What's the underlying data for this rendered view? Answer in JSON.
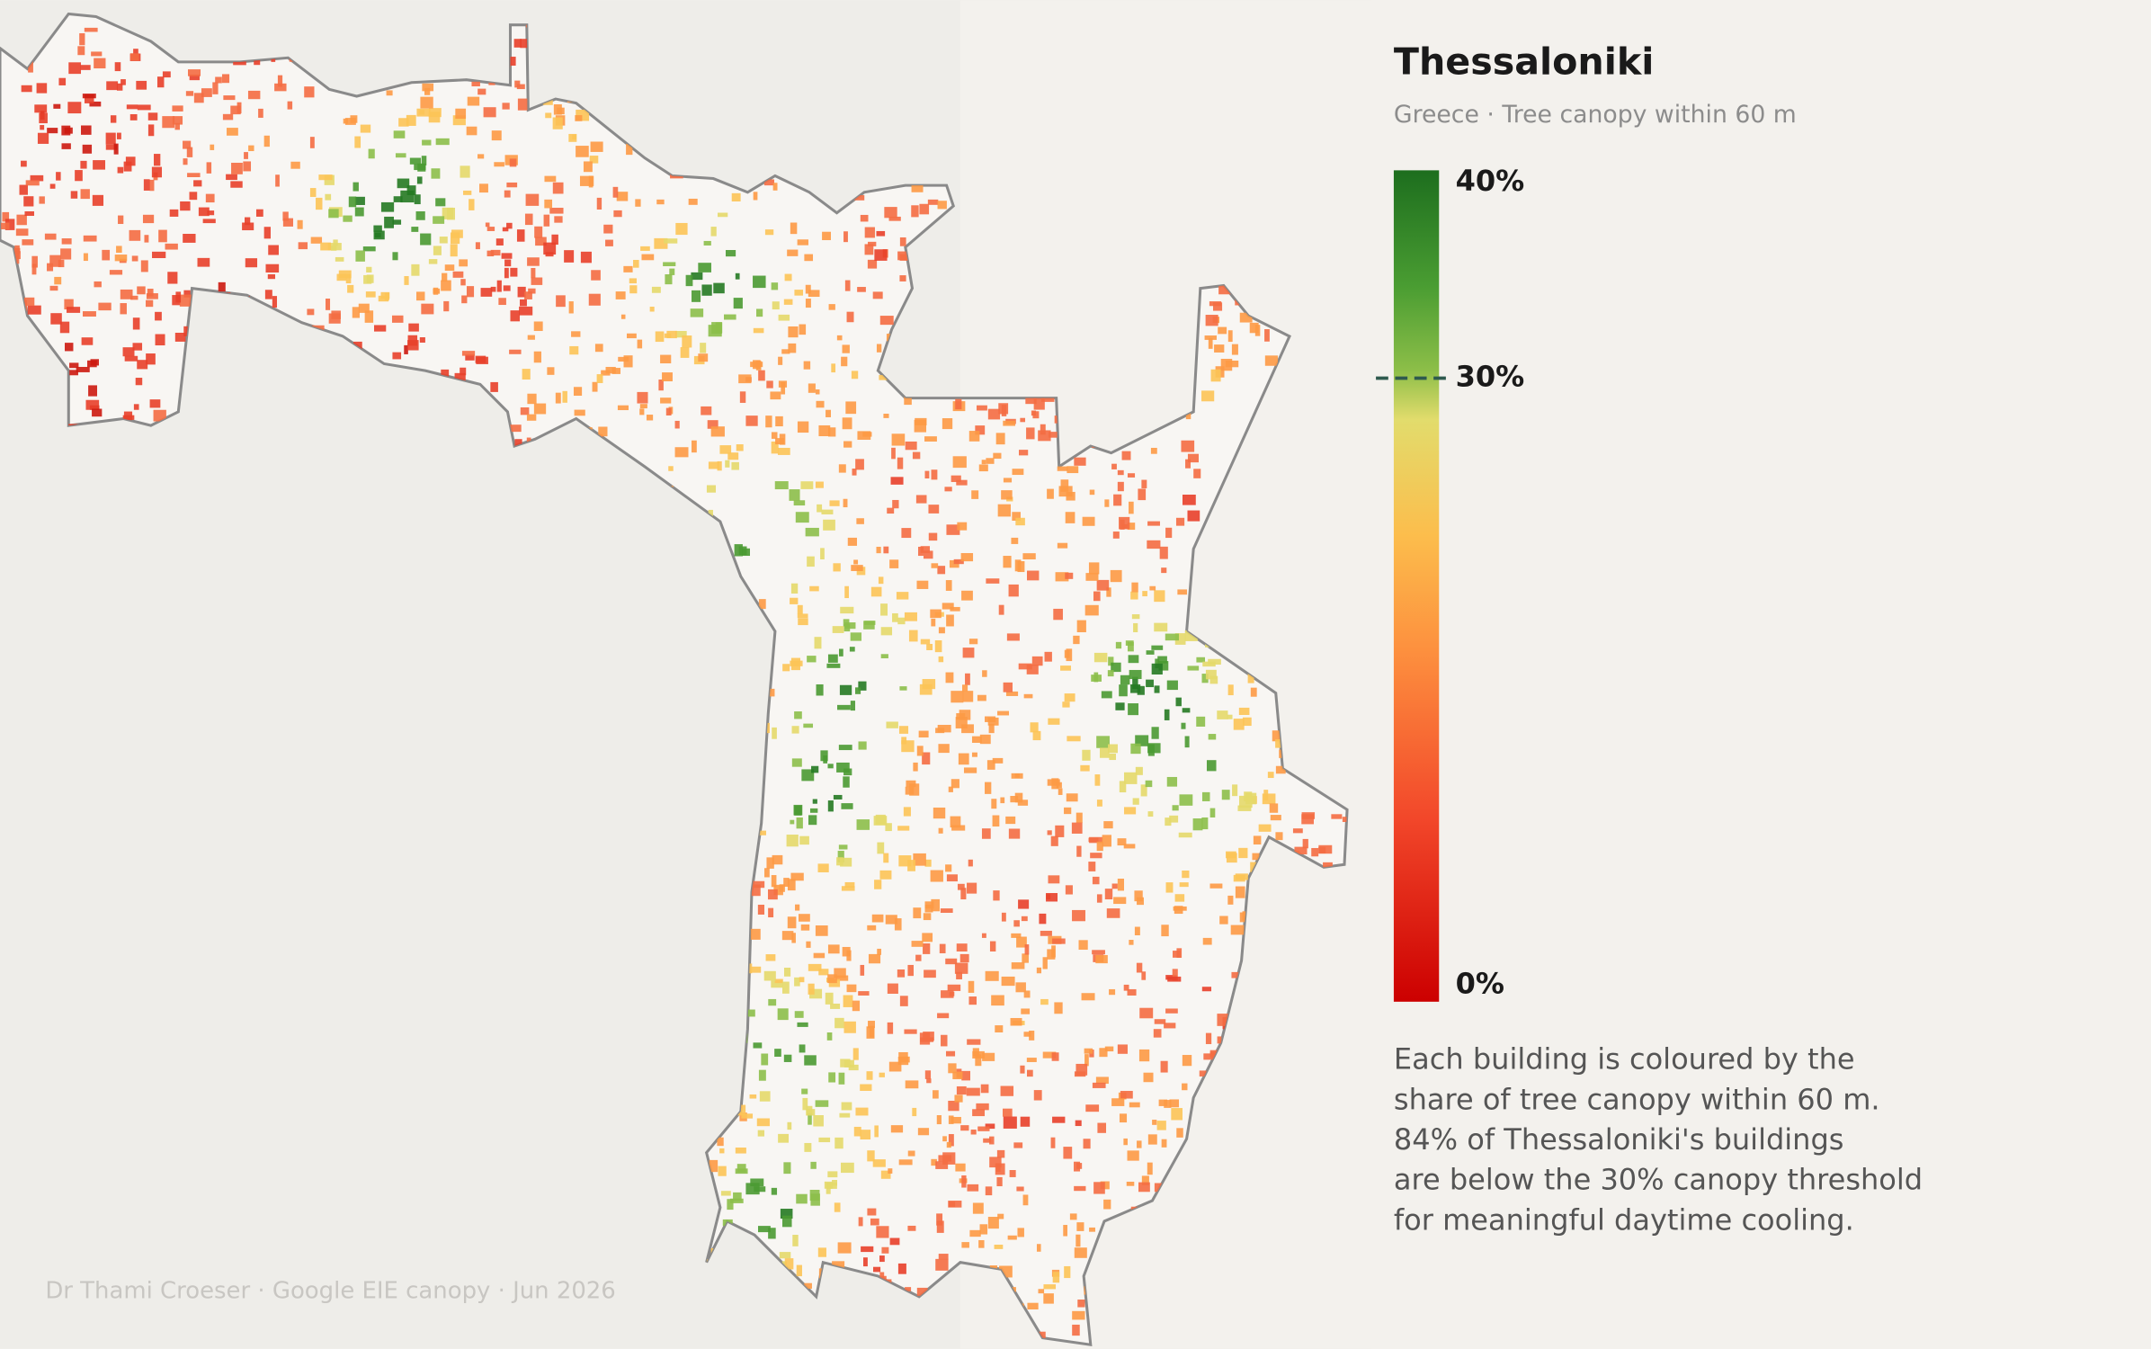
{
  "header": {
    "title": "Thessaloniki",
    "subtitle": "Greece  ·  Tree canopy within 60 m"
  },
  "legend": {
    "ticks": [
      {
        "value": 0,
        "label": "0%"
      },
      {
        "value": 30,
        "label": "30%"
      },
      {
        "value": 40,
        "label": "40%"
      }
    ],
    "threshold": 30
  },
  "description": [
    "Each building is coloured by the",
    "share of tree canopy within 60 m.",
    "84% of Thessaloniki's buildings",
    "are below the 30% canopy threshold",
    "for meaningful daytime cooling."
  ],
  "credit": "Dr Thami Croeser  ·  Google EIE canopy  ·  Jun 2026"
}
